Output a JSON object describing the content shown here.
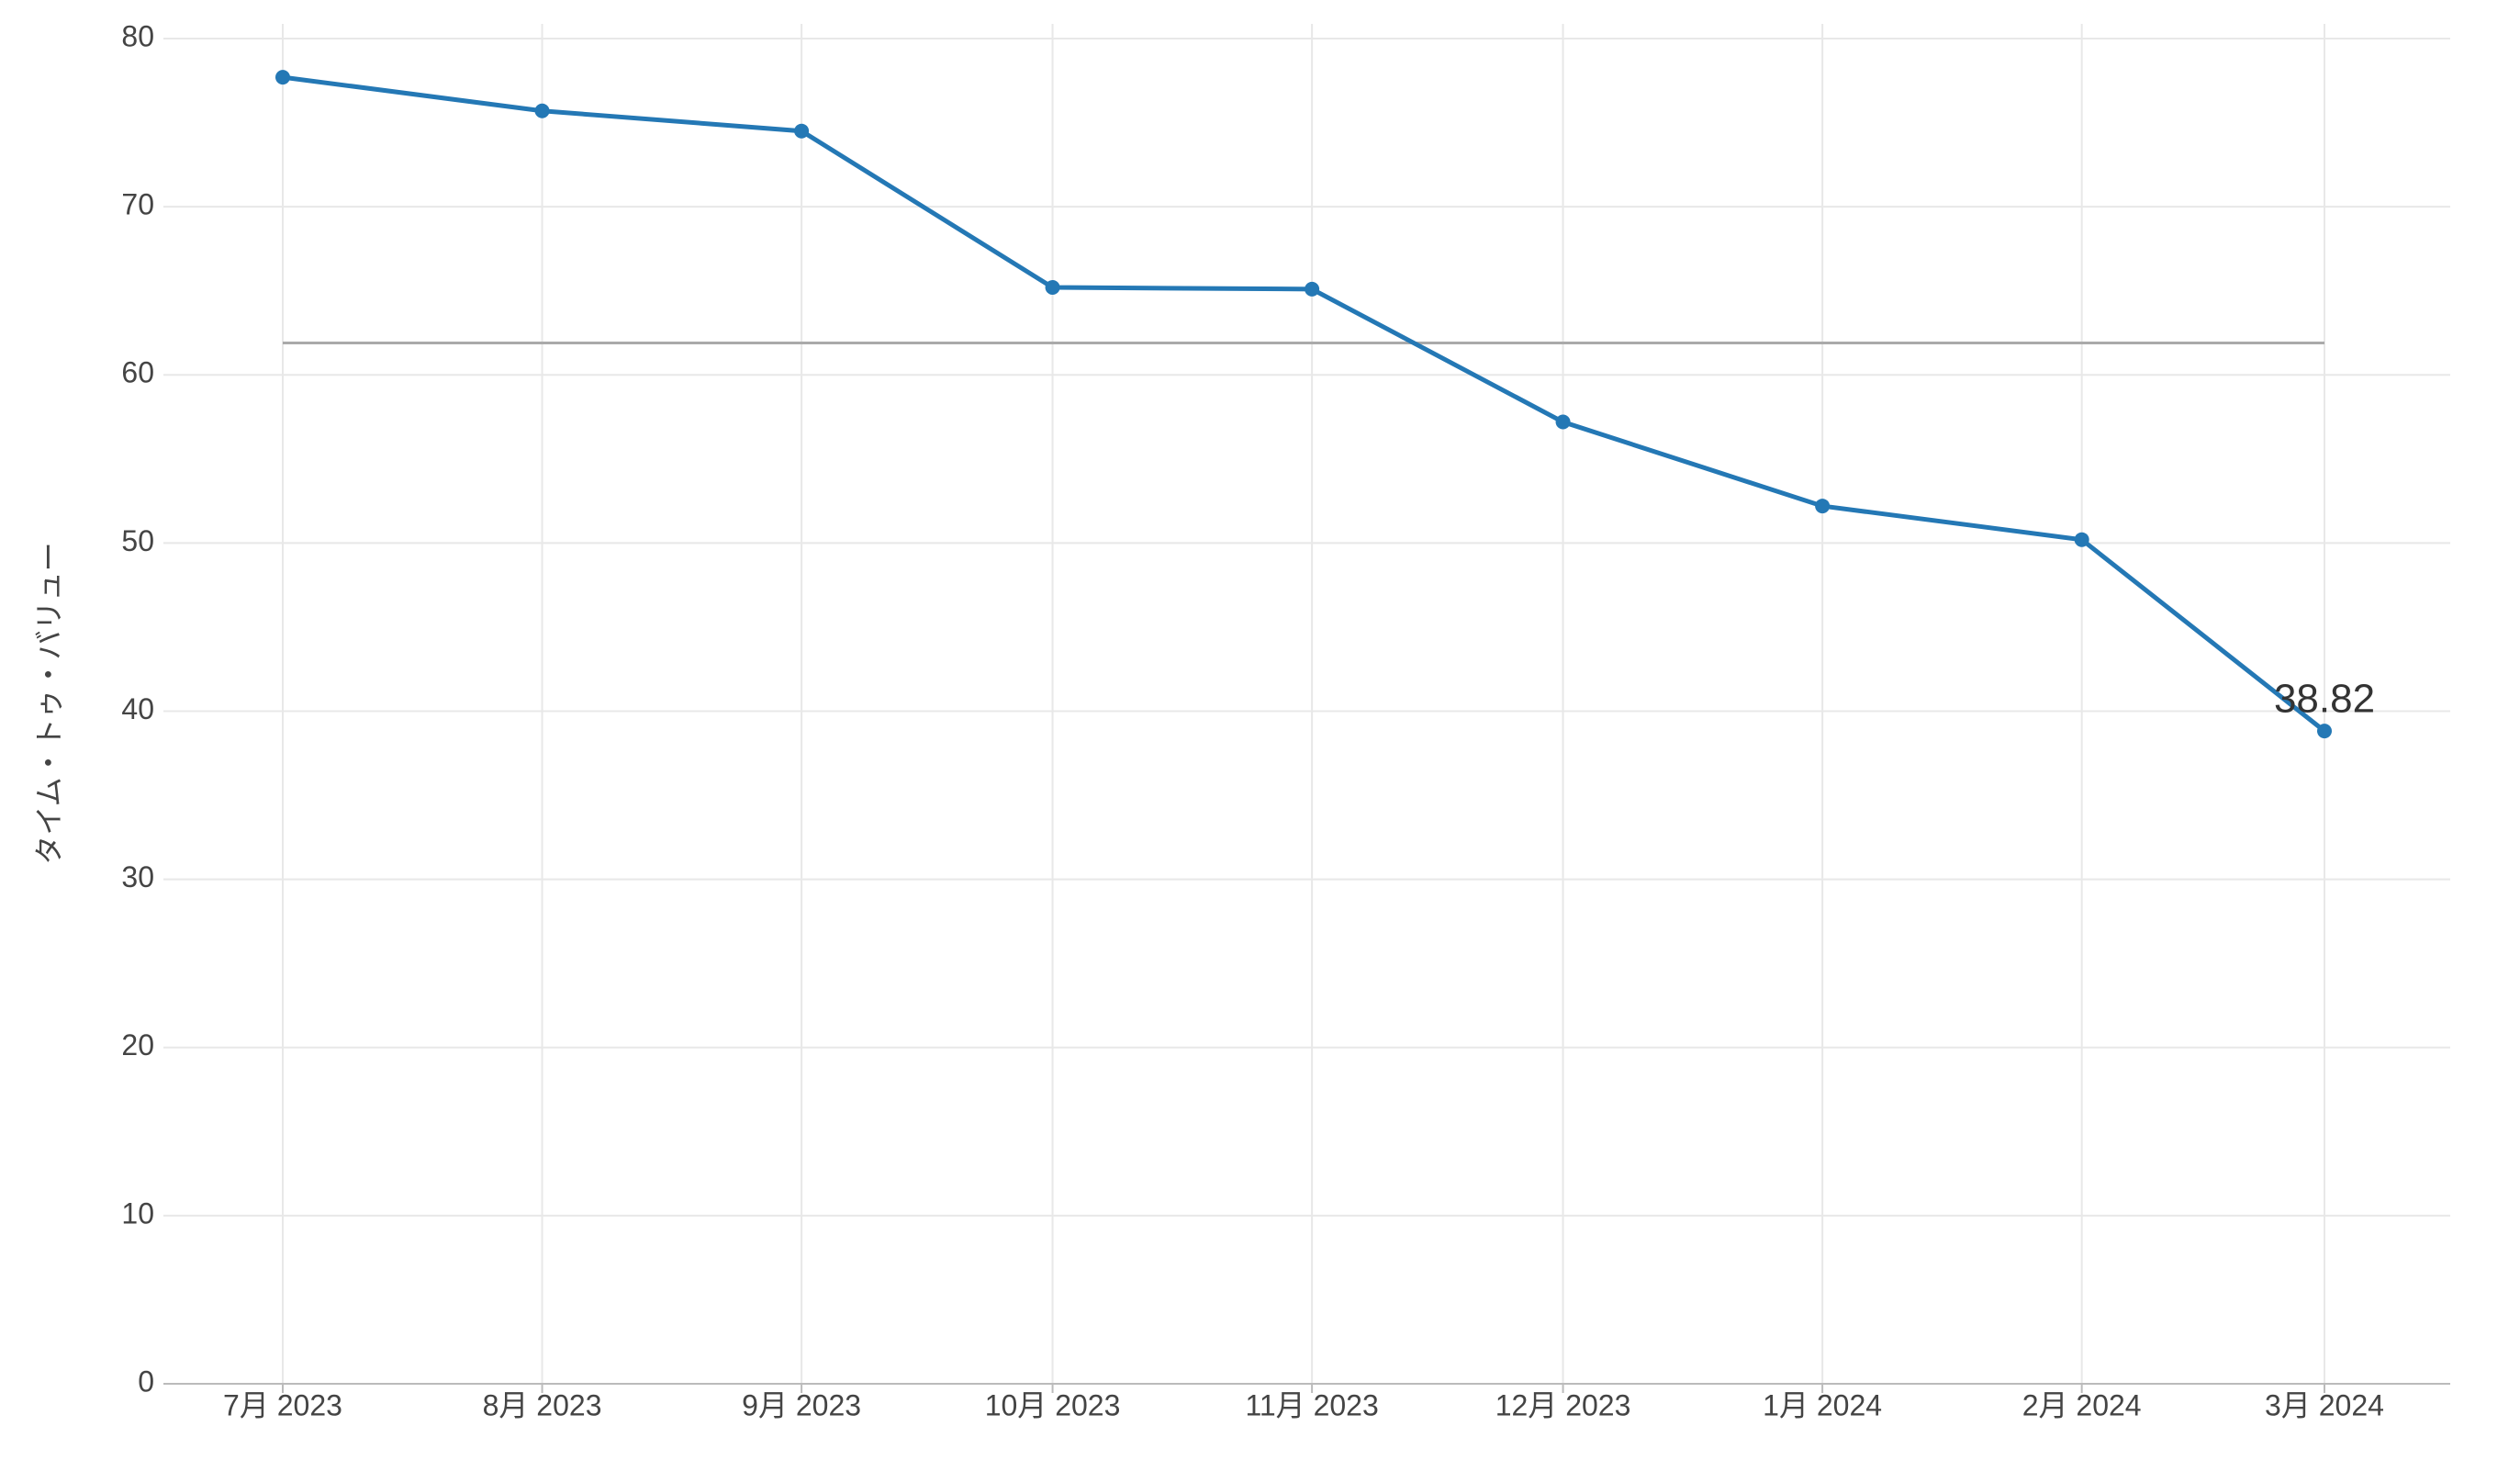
{
  "chart_data": {
    "type": "line",
    "y_label": "タイム・トゥ・バリュー",
    "x": [
      "2023-07",
      "2023-08",
      "2023-09",
      "2023-10",
      "2023-11",
      "2023-12",
      "2024-01",
      "2024-02",
      "2024-03"
    ],
    "xticks": [
      {
        "value": "2023-07",
        "label": "7月 2023"
      },
      {
        "value": "2023-08",
        "label": "8月 2023"
      },
      {
        "value": "2023-09",
        "label": "9月 2023"
      },
      {
        "value": "2023-10",
        "label": "10月 2023"
      },
      {
        "value": "2023-11",
        "label": "11月 2023"
      },
      {
        "value": "2023-12",
        "label": "12月 2023"
      },
      {
        "value": "2024-01",
        "label": "1月 2024"
      },
      {
        "value": "2024-02",
        "label": "2月 2024"
      },
      {
        "value": "2024-03",
        "label": "3月 2024"
      }
    ],
    "series": [
      {
        "color": "#2478b5",
        "values": [
          77.7,
          75.7,
          74.5,
          65.2,
          65.1,
          57.2,
          52.2,
          50.2,
          38.82
        ]
      }
    ],
    "reference_line": {
      "value": 61.9,
      "color": "#aaaaaa"
    },
    "ylim": [
      0,
      80
    ],
    "yticks": [
      0,
      10,
      20,
      30,
      40,
      50,
      60,
      70,
      80
    ],
    "grid": true
  }
}
